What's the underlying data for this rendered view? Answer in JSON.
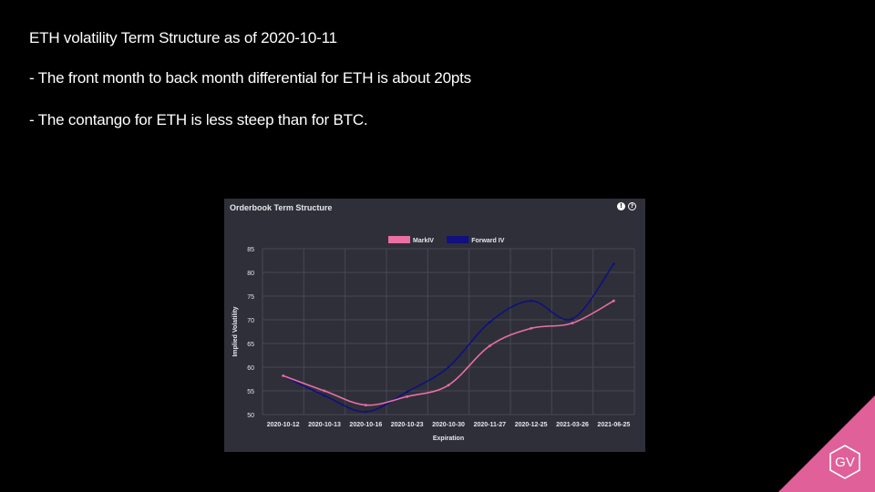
{
  "slide": {
    "title": "ETH volatility Term Structure as of 2020-10-11",
    "bullet_1": "- The front month to back month differential for ETH is about 20pts",
    "bullet_2": "- The contango for ETH is less steep than for BTC."
  },
  "panel": {
    "title": "Orderbook Term Structure",
    "info_icon": "exclamation-circle-icon",
    "help_icon": "question-circle-icon"
  },
  "logo": {
    "text": "GV",
    "color": "#e0609a"
  },
  "colors": {
    "background": "#000000",
    "panel": "#2f2f3a",
    "mark_iv": "#e96fa4",
    "forward_iv": "#10107e"
  },
  "chart_data": {
    "type": "line",
    "categories": [
      "2020-10-12",
      "2020-10-13",
      "2020-10-16",
      "2020-10-23",
      "2020-10-30",
      "2020-11-27",
      "2020-12-25",
      "2021-03-26",
      "2021-06-25"
    ],
    "series": [
      {
        "name": "MarkIV",
        "color": "#e96fa4",
        "values": [
          58.2,
          55.0,
          52.0,
          53.8,
          56.2,
          64.5,
          68.2,
          69.3,
          74.0
        ]
      },
      {
        "name": "Forward IV",
        "color": "#10107e",
        "values": [
          58.2,
          54.0,
          50.6,
          54.8,
          60.0,
          69.5,
          74.0,
          70.2,
          81.8
        ]
      }
    ],
    "xlabel": "Expiration",
    "ylabel": "Implied Volatility",
    "ylim": [
      50,
      85
    ],
    "yticks": [
      50,
      55,
      60,
      65,
      70,
      75,
      80,
      85
    ],
    "grid": true,
    "legend": "top-center"
  }
}
